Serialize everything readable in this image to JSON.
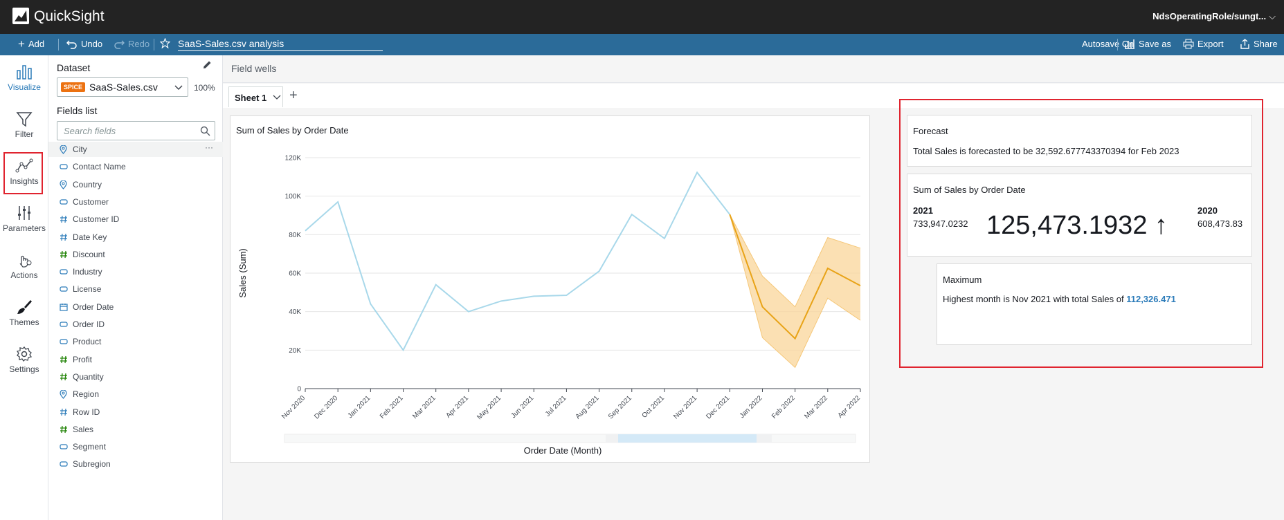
{
  "app": {
    "brand": "QuickSight",
    "role": "NdsOperatingRole/sungt..."
  },
  "toolbar": {
    "add": "Add",
    "undo": "Undo",
    "redo": "Redo",
    "analysis_name": "SaaS-Sales.csv analysis",
    "autosave": "Autosave On",
    "save_as": "Save as",
    "export": "Export",
    "share": "Share"
  },
  "nav": [
    {
      "label": "Visualize",
      "icon": "bar-chart-icon"
    },
    {
      "label": "Filter",
      "icon": "funnel-icon"
    },
    {
      "label": "Insights",
      "icon": "insights-icon"
    },
    {
      "label": "Parameters",
      "icon": "sliders-icon"
    },
    {
      "label": "Actions",
      "icon": "pointer-icon"
    },
    {
      "label": "Themes",
      "icon": "brush-icon"
    },
    {
      "label": "Settings",
      "icon": "gear-icon"
    }
  ],
  "dataset": {
    "label": "Dataset",
    "badge": "SPICE",
    "name": "SaaS-Sales.csv",
    "percent": "100%"
  },
  "fields_list": {
    "label": "Fields list",
    "search_placeholder": "Search fields",
    "items": [
      {
        "name": "City",
        "type": "geo"
      },
      {
        "name": "Contact Name",
        "type": "text"
      },
      {
        "name": "Country",
        "type": "geo"
      },
      {
        "name": "Customer",
        "type": "text"
      },
      {
        "name": "Customer ID",
        "type": "number"
      },
      {
        "name": "Date Key",
        "type": "number"
      },
      {
        "name": "Discount",
        "type": "measure"
      },
      {
        "name": "Industry",
        "type": "text"
      },
      {
        "name": "License",
        "type": "text"
      },
      {
        "name": "Order Date",
        "type": "date"
      },
      {
        "name": "Order ID",
        "type": "text"
      },
      {
        "name": "Product",
        "type": "text"
      },
      {
        "name": "Profit",
        "type": "measure"
      },
      {
        "name": "Quantity",
        "type": "measure"
      },
      {
        "name": "Region",
        "type": "geo"
      },
      {
        "name": "Row ID",
        "type": "number"
      },
      {
        "name": "Sales",
        "type": "measure"
      },
      {
        "name": "Segment",
        "type": "text"
      },
      {
        "name": "Subregion",
        "type": "text"
      }
    ]
  },
  "main": {
    "field_wells": "Field wells",
    "sheet_tab": "Sheet 1"
  },
  "chart_data": {
    "type": "line",
    "title": "Sum of Sales by Order Date",
    "xlabel": "Order Date (Month)",
    "ylabel": "Sales (Sum)",
    "ylim": [
      0,
      120000
    ],
    "yticks": [
      0,
      20000,
      40000,
      60000,
      80000,
      100000,
      120000
    ],
    "ytick_labels": [
      "0",
      "20K",
      "40K",
      "60K",
      "80K",
      "100K",
      "120K"
    ],
    "categories": [
      "Nov 2020",
      "Dec 2020",
      "Jan 2021",
      "Feb 2021",
      "Mar 2021",
      "Apr 2021",
      "May 2021",
      "Jun 2021",
      "Jul 2021",
      "Aug 2021",
      "Sep 2021",
      "Oct 2021",
      "Nov 2021",
      "Dec 2021",
      "Jan 2022",
      "Feb 2022",
      "Mar 2022",
      "Apr 2022"
    ],
    "series": [
      {
        "type": "actual",
        "values": [
          82000,
          97000,
          44000,
          20000,
          54000,
          40000,
          45500,
          48000,
          48500,
          61000,
          90500,
          78000,
          112326,
          90500,
          null,
          null,
          null,
          null
        ]
      },
      {
        "type": "forecast",
        "values": [
          null,
          null,
          null,
          null,
          null,
          null,
          null,
          null,
          null,
          null,
          null,
          null,
          null,
          90500,
          42500,
          26000,
          62500,
          53500
        ]
      },
      {
        "type": "forecast_upper",
        "values": [
          null,
          null,
          null,
          null,
          null,
          null,
          null,
          null,
          null,
          null,
          null,
          null,
          null,
          90500,
          58500,
          42500,
          78500,
          73000
        ]
      },
      {
        "type": "forecast_lower",
        "values": [
          null,
          null,
          null,
          null,
          null,
          null,
          null,
          null,
          null,
          null,
          null,
          null,
          null,
          90500,
          26500,
          11000,
          47000,
          35500
        ]
      }
    ],
    "colors": {
      "actual": "#a8d8ea",
      "forecast": "#e8a317",
      "band": "#f9d59a"
    },
    "grid": true
  },
  "insights": {
    "forecast": {
      "title": "Forecast",
      "text": "Total Sales is forecasted to be 32,592.677743370394 for Feb 2023"
    },
    "kpi": {
      "title": "Sum of Sales by Order Date",
      "left_year": "2021",
      "left_value": "733,947.0232",
      "big_value": "125,473.1932 ↑",
      "right_year": "2020",
      "right_value": "608,473.83"
    },
    "maximum": {
      "title": "Maximum",
      "text": "Highest month is Nov 2021 with total Sales of",
      "value": "112,326.471"
    }
  }
}
